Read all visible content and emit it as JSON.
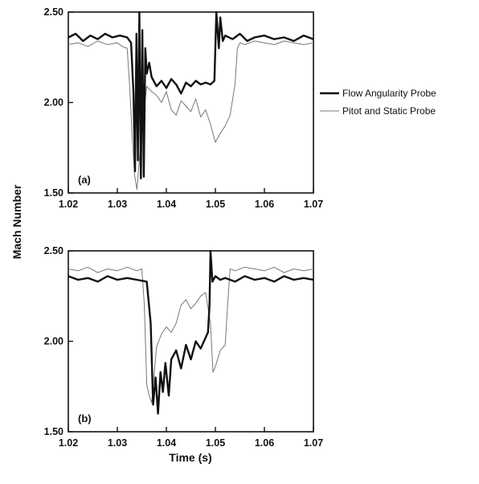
{
  "chart_data": {
    "type": "line",
    "xlabel": "Time (s)",
    "ylabel": "Mach Number",
    "xlim": [
      1.02,
      1.07
    ],
    "ylim": [
      1.5,
      2.5
    ],
    "x_ticks": [
      "1.02",
      "1.03",
      "1.04",
      "1.05",
      "1.06",
      "1.07"
    ],
    "y_ticks": [
      "1.50",
      "2.00",
      "2.50"
    ],
    "grid": false,
    "legend_placement": "right",
    "legend": [
      {
        "name": "Flow Angularity Probe",
        "color": "#111111",
        "style": "thick"
      },
      {
        "name": "Pitot and Static Probe",
        "color": "#777777",
        "style": "thin"
      }
    ],
    "panels": [
      {
        "label": "(a)",
        "series": [
          {
            "name": "Flow Angularity Probe",
            "color": "#111111",
            "x": [
              1.02,
              1.0215,
              1.023,
              1.0245,
              1.026,
              1.0275,
              1.029,
              1.0305,
              1.032,
              1.0328,
              1.0333,
              1.0336,
              1.0339,
              1.0342,
              1.0345,
              1.0348,
              1.0351,
              1.0354,
              1.0357,
              1.036,
              1.0365,
              1.037,
              1.038,
              1.039,
              1.04,
              1.041,
              1.042,
              1.043,
              1.044,
              1.045,
              1.046,
              1.047,
              1.048,
              1.049,
              1.0498,
              1.0502,
              1.0507,
              1.051,
              1.0515,
              1.052,
              1.0535,
              1.055,
              1.0565,
              1.058,
              1.06,
              1.062,
              1.064,
              1.066,
              1.068,
              1.07
            ],
            "y": [
              2.36,
              2.38,
              2.34,
              2.37,
              2.35,
              2.38,
              2.36,
              2.37,
              2.36,
              2.33,
              2.05,
              1.62,
              2.38,
              1.68,
              2.5,
              1.58,
              2.4,
              1.59,
              2.3,
              2.16,
              2.22,
              2.14,
              2.09,
              2.12,
              2.08,
              2.13,
              2.1,
              2.05,
              2.11,
              2.09,
              2.12,
              2.1,
              2.11,
              2.1,
              2.12,
              2.5,
              2.3,
              2.47,
              2.34,
              2.37,
              2.35,
              2.38,
              2.34,
              2.36,
              2.37,
              2.35,
              2.36,
              2.34,
              2.37,
              2.35
            ]
          },
          {
            "name": "Pitot and Static Probe",
            "color": "#777777",
            "x": [
              1.02,
              1.022,
              1.024,
              1.026,
              1.028,
              1.03,
              1.031,
              1.032,
              1.0325,
              1.033,
              1.0335,
              1.034,
              1.035,
              1.036,
              1.037,
              1.038,
              1.039,
              1.04,
              1.041,
              1.042,
              1.043,
              1.044,
              1.045,
              1.046,
              1.047,
              1.048,
              1.049,
              1.05,
              1.051,
              1.052,
              1.053,
              1.054,
              1.0545,
              1.055,
              1.056,
              1.058,
              1.06,
              1.062,
              1.064,
              1.066,
              1.068,
              1.07
            ],
            "y": [
              2.32,
              2.33,
              2.31,
              2.34,
              2.32,
              2.33,
              2.31,
              2.3,
              2.1,
              1.83,
              1.6,
              1.52,
              1.85,
              2.09,
              2.06,
              2.04,
              2.0,
              2.06,
              1.96,
              1.93,
              2.01,
              1.98,
              1.95,
              2.02,
              1.92,
              1.96,
              1.88,
              1.78,
              1.83,
              1.87,
              1.93,
              2.1,
              2.3,
              2.33,
              2.32,
              2.34,
              2.33,
              2.32,
              2.34,
              2.33,
              2.32,
              2.33
            ]
          }
        ]
      },
      {
        "label": "(b)",
        "series": [
          {
            "name": "Flow Angularity Probe",
            "color": "#111111",
            "x": [
              1.02,
              1.022,
              1.024,
              1.026,
              1.028,
              1.03,
              1.032,
              1.034,
              1.036,
              1.0368,
              1.0373,
              1.0378,
              1.0383,
              1.0388,
              1.0393,
              1.0398,
              1.0405,
              1.041,
              1.042,
              1.043,
              1.044,
              1.045,
              1.046,
              1.047,
              1.048,
              1.0485,
              1.0488,
              1.049,
              1.0494,
              1.05,
              1.051,
              1.052,
              1.054,
              1.056,
              1.058,
              1.06,
              1.062,
              1.064,
              1.066,
              1.068,
              1.07
            ],
            "y": [
              2.36,
              2.34,
              2.35,
              2.33,
              2.36,
              2.34,
              2.35,
              2.34,
              2.33,
              2.1,
              1.65,
              1.8,
              1.6,
              1.83,
              1.72,
              1.88,
              1.7,
              1.9,
              1.95,
              1.85,
              1.98,
              1.9,
              2.0,
              1.96,
              2.02,
              2.05,
              2.2,
              2.5,
              2.33,
              2.36,
              2.34,
              2.35,
              2.33,
              2.36,
              2.34,
              2.35,
              2.33,
              2.36,
              2.34,
              2.35,
              2.34
            ]
          },
          {
            "name": "Pitot and Static Probe",
            "color": "#777777",
            "x": [
              1.02,
              1.022,
              1.024,
              1.026,
              1.028,
              1.03,
              1.032,
              1.034,
              1.035,
              1.0355,
              1.036,
              1.0365,
              1.037,
              1.038,
              1.039,
              1.04,
              1.041,
              1.042,
              1.043,
              1.044,
              1.045,
              1.046,
              1.047,
              1.048,
              1.049,
              1.0495,
              1.05,
              1.051,
              1.052,
              1.0525,
              1.053,
              1.054,
              1.056,
              1.058,
              1.06,
              1.062,
              1.064,
              1.066,
              1.068,
              1.07
            ],
            "y": [
              2.4,
              2.39,
              2.41,
              2.38,
              2.4,
              2.39,
              2.41,
              2.39,
              2.4,
              2.2,
              1.76,
              1.7,
              1.66,
              1.97,
              2.04,
              2.08,
              2.05,
              2.1,
              2.2,
              2.23,
              2.18,
              2.21,
              2.25,
              2.27,
              2.1,
              1.83,
              1.86,
              1.95,
              1.98,
              2.2,
              2.4,
              2.39,
              2.41,
              2.4,
              2.39,
              2.41,
              2.38,
              2.4,
              2.39,
              2.4
            ]
          }
        ]
      }
    ]
  }
}
